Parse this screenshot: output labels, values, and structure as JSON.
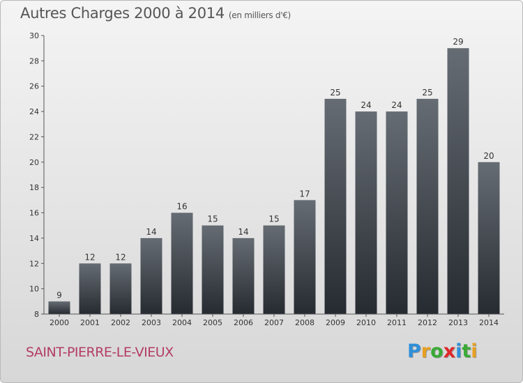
{
  "header": {
    "title": "Autres Charges 2000 à 2014",
    "subtitle": "(en milliers d'€)"
  },
  "footer": {
    "commune": "SAINT-PIERRE-LE-VIEUX",
    "logo_letters": [
      {
        "ch": "P",
        "color": "#2f8fd8"
      },
      {
        "ch": "r",
        "color": "#e8a020"
      },
      {
        "ch": "o",
        "color": "#3aaa35"
      },
      {
        "ch": "x",
        "color": "#e0272a"
      },
      {
        "ch": "i",
        "color": "#2f8fd8"
      },
      {
        "ch": "t",
        "color": "#3aaa35"
      },
      {
        "ch": "i",
        "color": "#e8a020"
      }
    ]
  },
  "chart_data": {
    "type": "bar",
    "title": "Autres Charges 2000 à 2014",
    "subtitle": "(en milliers d'€)",
    "categories": [
      "2000",
      "2001",
      "2002",
      "2003",
      "2004",
      "2005",
      "2006",
      "2007",
      "2008",
      "2009",
      "2010",
      "2011",
      "2012",
      "2013",
      "2014"
    ],
    "values": [
      9,
      12,
      12,
      14,
      16,
      15,
      14,
      15,
      17,
      25,
      24,
      24,
      25,
      29,
      20
    ],
    "ylim": [
      8,
      30
    ],
    "yticks": [
      8,
      10,
      12,
      14,
      16,
      18,
      20,
      22,
      24,
      26,
      28,
      30
    ],
    "xlabel": "",
    "ylabel": "",
    "grid": false,
    "legend": "none",
    "bar_color_top": "#666c73",
    "bar_color_bottom": "#262b31"
  }
}
